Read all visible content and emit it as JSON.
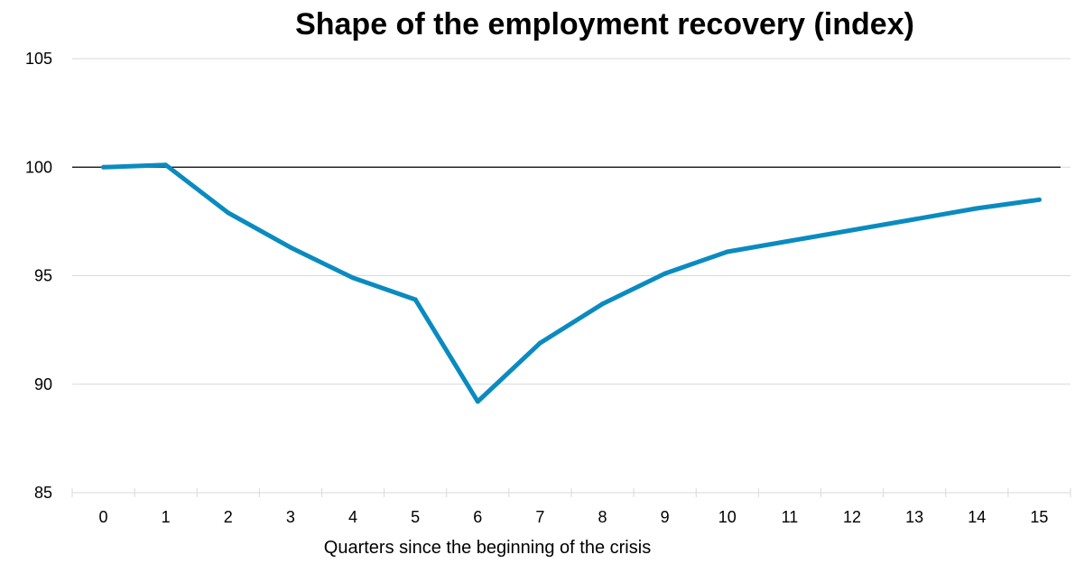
{
  "chart_data": {
    "type": "line",
    "title": "Shape of the employment recovery (index)",
    "xlabel": "Quarters since the beginning of the crisis",
    "ylabel": "",
    "x": [
      0,
      1,
      2,
      3,
      4,
      5,
      6,
      7,
      8,
      9,
      10,
      11,
      12,
      13,
      14,
      15
    ],
    "series": [
      {
        "values": [
          100,
          100.1,
          97.9,
          96.3,
          94.9,
          93.9,
          89.2,
          91.9,
          93.7,
          95.1,
          96.1,
          96.6,
          97.1,
          97.6,
          98.1,
          98.5
        ],
        "color": "#0a8bc0"
      }
    ],
    "ylim": [
      85,
      105
    ],
    "yticks": [
      85,
      90,
      95,
      100,
      105
    ],
    "reference_line": {
      "y": 100,
      "color": "#000000"
    },
    "grid": true,
    "legend": "none"
  }
}
